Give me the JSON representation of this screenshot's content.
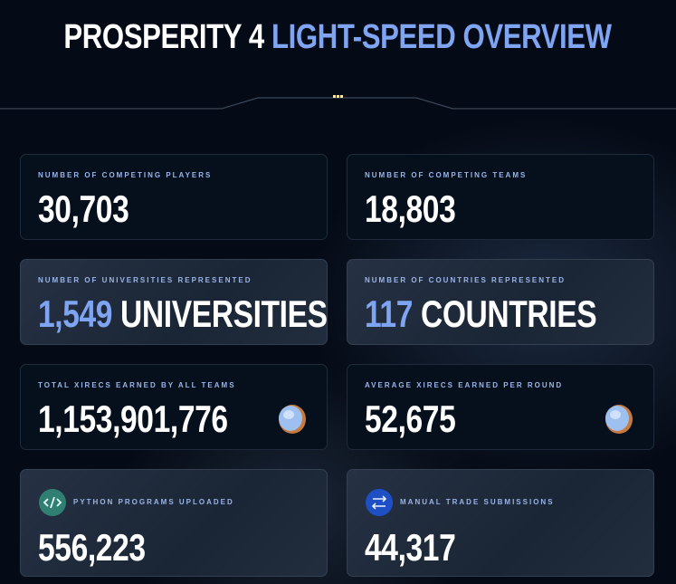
{
  "header": {
    "title_main": "PROSPERITY 4",
    "title_accent": "LIGHT-SPEED OVERVIEW"
  },
  "cards": [
    {
      "label": "NUMBER OF COMPETING PLAYERS",
      "value": "30,703"
    },
    {
      "label": "NUMBER OF COMPETING TEAMS",
      "value": "18,803"
    },
    {
      "label": "NUMBER OF UNIVERSITIES REPRESENTED",
      "value": "1,549",
      "unit": "UNIVERSITIES"
    },
    {
      "label": "NUMBER OF COUNTRIES REPRESENTED",
      "value": "117",
      "unit": "COUNTRIES"
    },
    {
      "label": "TOTAL XIRECS EARNED BY ALL TEAMS",
      "value": "1,153,901,776"
    },
    {
      "label": "AVERAGE XIRECS EARNED PER ROUND",
      "value": "52,675"
    },
    {
      "label": "PYTHON PROGRAMS UPLOADED",
      "value": "556,223"
    },
    {
      "label": "MANUAL TRADE SUBMISSIONS",
      "value": "44,317"
    }
  ]
}
